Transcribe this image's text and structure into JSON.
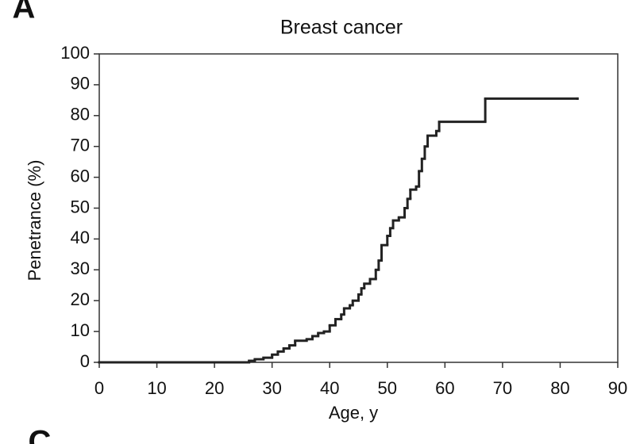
{
  "panel_labels": [
    "A",
    "C"
  ],
  "chart_data": {
    "type": "line",
    "step": "post",
    "title": "Breast cancer",
    "x_label": "Age, y",
    "y_label": "Penetrance (%)",
    "x": [
      0,
      26,
      27,
      28.5,
      30,
      31,
      32,
      33,
      34,
      36,
      37,
      38,
      39,
      40,
      41,
      42,
      42.5,
      43.5,
      44,
      45,
      45.5,
      46,
      47,
      48,
      48.5,
      49,
      50,
      50.5,
      51,
      52,
      53,
      53.5,
      54,
      55,
      55.5,
      56,
      56.5,
      57,
      58.5,
      59,
      67,
      83
    ],
    "values": [
      0,
      0.5,
      1,
      1.5,
      2.5,
      3.5,
      4.5,
      5.5,
      7,
      7.5,
      8.5,
      9.5,
      10,
      12,
      14,
      15.5,
      17.5,
      18.5,
      20,
      22,
      24,
      25.5,
      27,
      30,
      33,
      38,
      41,
      43.5,
      46,
      47,
      50,
      53,
      56,
      57,
      62,
      66,
      70,
      73.5,
      75,
      78,
      85.5,
      85.5
    ],
    "color": "#222222",
    "xlim": [
      0,
      90
    ],
    "xticks": [
      0,
      10,
      20,
      30,
      40,
      50,
      60,
      70,
      80,
      90
    ],
    "ylim": [
      0,
      100
    ],
    "yticks": [
      0,
      10,
      20,
      30,
      40,
      50,
      60,
      70,
      80,
      90,
      100
    ]
  }
}
